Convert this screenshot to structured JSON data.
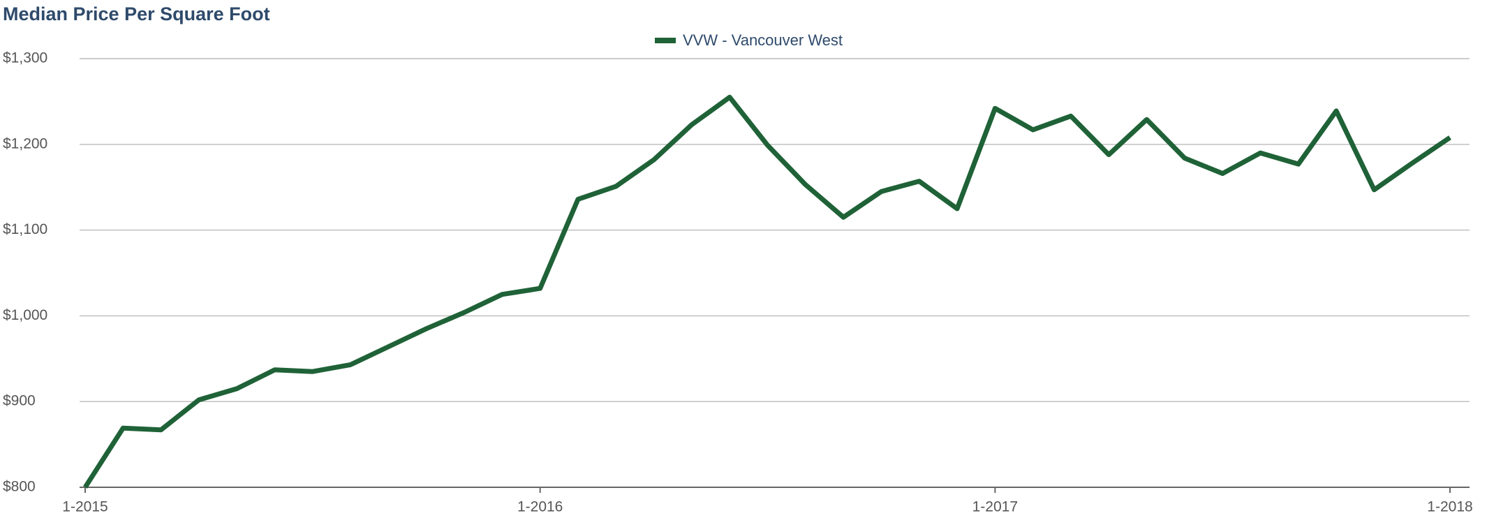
{
  "chart_data": {
    "type": "line",
    "title": "Median Price Per Square Foot",
    "categories": [
      "1-2015",
      null,
      null,
      null,
      null,
      null,
      null,
      null,
      null,
      null,
      null,
      null,
      "1-2016",
      null,
      null,
      null,
      null,
      null,
      null,
      null,
      null,
      null,
      null,
      null,
      "1-2017",
      null,
      null,
      null,
      null,
      null,
      null,
      null,
      null,
      null,
      null,
      null,
      "1-2018"
    ],
    "series": [
      {
        "name": "VVW - Vancouver West",
        "color": "#1f6237",
        "values": [
          800,
          869,
          867,
          902,
          915,
          937,
          935,
          943,
          964,
          985,
          1004,
          1025,
          1032,
          1136,
          1151,
          1182,
          1223,
          1255,
          1199,
          1153,
          1115,
          1145,
          1157,
          1125,
          1242,
          1217,
          1233,
          1188,
          1229,
          1184,
          1166,
          1190,
          1177,
          1239,
          1147,
          1178,
          1208
        ]
      }
    ],
    "ylim": [
      800,
      1300
    ],
    "yticks": [
      {
        "value": 800,
        "label": "$800"
      },
      {
        "value": 900,
        "label": "$900"
      },
      {
        "value": 1000,
        "label": "$1,000"
      },
      {
        "value": 1100,
        "label": "$1,100"
      },
      {
        "value": 1200,
        "label": "$1,200"
      },
      {
        "value": 1300,
        "label": "$1,300"
      }
    ],
    "grid": true,
    "legend": "top"
  }
}
